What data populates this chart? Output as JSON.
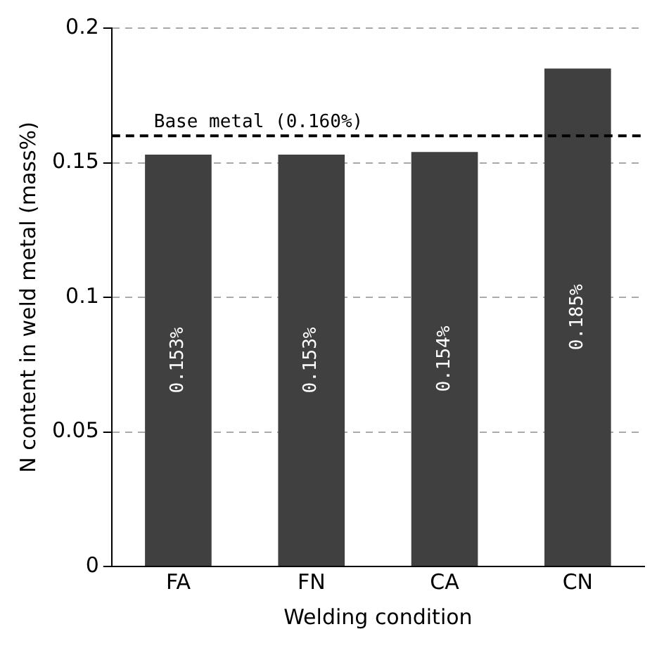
{
  "chart_data": {
    "type": "bar",
    "xlabel": "Welding condition",
    "ylabel": "N content in weld metal (mass%)",
    "categories": [
      "FA",
      "FN",
      "CA",
      "CN"
    ],
    "values": [
      0.153,
      0.153,
      0.154,
      0.185
    ],
    "value_labels": [
      "0.153%",
      "0.153%",
      "0.154%",
      "0.185%"
    ],
    "color": "#404040",
    "ylim": [
      0,
      0.2
    ],
    "yticks": [
      0,
      0.05,
      {
        "value": 0.1,
        "label": "0.1"
      },
      0.15,
      0.2
    ],
    "grid": "y",
    "legend": false,
    "ref_lines": [
      {
        "axis": "y",
        "value": 0.16,
        "label": "Base metal (0.160%)",
        "color": "#000000",
        "line_style": "dashed"
      }
    ]
  }
}
